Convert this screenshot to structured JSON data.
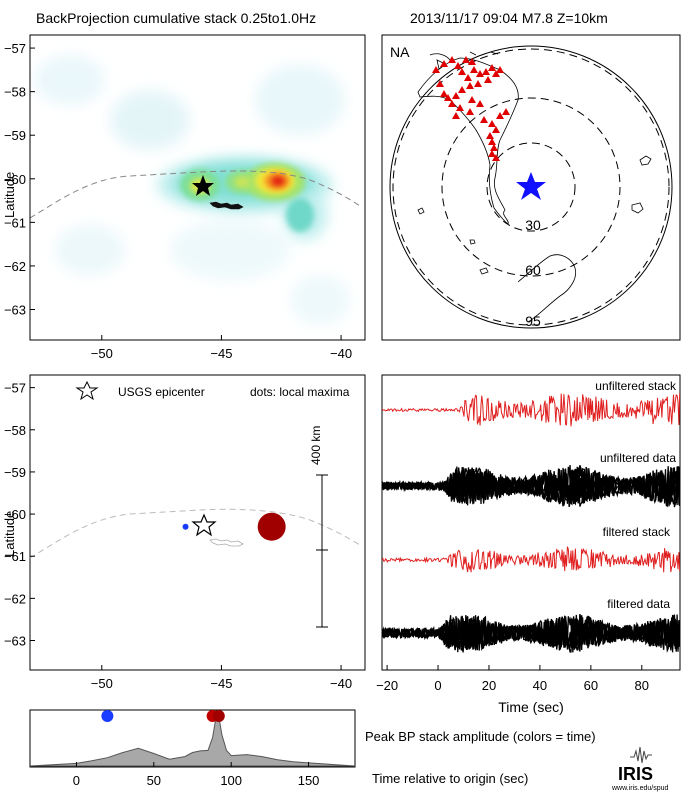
{
  "header": {
    "left_title": "BackProjection cumulative stack 0.25to1.0Hz",
    "right_title": "2013/11/17 09:04   M7.8  Z=10km"
  },
  "map_axes": {
    "ylabel": "Latitude",
    "lat_ticks": [
      -57,
      -58,
      -59,
      -60,
      -61,
      -62,
      -63
    ],
    "lon_ticks": [
      -50,
      -45,
      -40
    ],
    "lat_range": [
      -63.7,
      -56.7
    ],
    "lon_range": [
      -53,
      -39
    ]
  },
  "top_left": {
    "epicenter": {
      "lon": -46.3,
      "lat": -60.27
    },
    "hotspots": [
      {
        "lon": -42.8,
        "lat": -60.2,
        "level": 1.0
      },
      {
        "lon": -44.8,
        "lat": -60.1,
        "level": 0.55
      },
      {
        "lon": -46.2,
        "lat": -60.2,
        "level": 0.6
      },
      {
        "lon": -41.1,
        "lat": -61.1,
        "level": 0.5
      }
    ]
  },
  "globe": {
    "label": "NA",
    "rings": [
      "30",
      "60",
      "95"
    ]
  },
  "bottom_left": {
    "legend_left": "USGS epicenter",
    "legend_right": "dots: local maxima",
    "scale_label": "400 km",
    "maxima": [
      {
        "lon": -46.5,
        "lat": -60.3,
        "color": "#1a3cff",
        "size": 3
      },
      {
        "lon": -42.9,
        "lat": -60.3,
        "color": "#a00000",
        "size": 14
      }
    ]
  },
  "waveforms": {
    "labels": [
      "unfiltered stack",
      "unfiltered data",
      "filtered stack",
      "filtered data"
    ],
    "xlabel": "Time (sec)",
    "x_ticks": [
      -20,
      0,
      20,
      40,
      60,
      80
    ],
    "x_range": [
      -22,
      95
    ]
  },
  "timeline": {
    "x_ticks": [
      0,
      50,
      100,
      150
    ],
    "x_range": [
      -30,
      180
    ],
    "caption_top": "Peak BP stack amplitude (colors = time)",
    "caption_bottom": "Time relative to origin (sec)",
    "dots": [
      {
        "t": 20,
        "color": "#1a3cff"
      },
      {
        "t": 88,
        "color": "#c00000"
      },
      {
        "t": 92,
        "color": "#a00000"
      }
    ]
  },
  "chart_data": {
    "type": "area",
    "title": "Peak BP stack amplitude (colors = time)",
    "xlabel": "Time relative to origin (sec)",
    "x": [
      -30,
      0,
      10,
      20,
      30,
      40,
      50,
      60,
      70,
      75,
      80,
      85,
      88,
      90,
      92,
      94,
      97,
      100,
      110,
      120,
      130,
      140,
      150,
      160,
      170,
      180
    ],
    "values": [
      0.0,
      0.05,
      0.1,
      0.16,
      0.26,
      0.34,
      0.24,
      0.13,
      0.18,
      0.26,
      0.29,
      0.3,
      0.55,
      0.9,
      0.95,
      0.6,
      0.3,
      0.2,
      0.22,
      0.18,
      0.12,
      0.08,
      0.06,
      0.04,
      0.02,
      0.0
    ]
  },
  "logo": {
    "name": "IRIS",
    "sub": "www.iris.edu/spud"
  }
}
